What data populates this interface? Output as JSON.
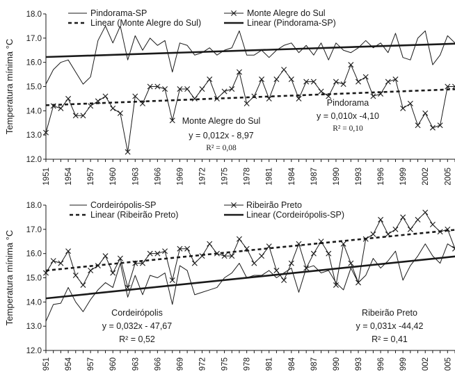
{
  "chart_data": [
    {
      "type": "line",
      "ylabel": "Temperatura mínima °C",
      "ylim": [
        12.0,
        18.0
      ],
      "yticks": [
        "12.0",
        "13.0",
        "14.0",
        "15.0",
        "16.0",
        "17.0",
        "18.0"
      ],
      "xlim": [
        1951,
        2006
      ],
      "xticks": [
        "1951",
        "1954",
        "1957",
        "1960",
        "1963",
        "1966",
        "1969",
        "1972",
        "1975",
        "1978",
        "1981",
        "1984",
        "1987",
        "1990",
        "1993",
        "1996",
        "1999",
        "2002",
        "2005"
      ],
      "legend": [
        "Pindorama-SP",
        "Monte Alegre do Sul",
        "Linear (Monte Alegre do Sul)",
        "Linear (Pindorama-SP)"
      ],
      "series": [
        {
          "name": "Pindorama-SP",
          "style": "thin-line",
          "color": "#1a1a1a",
          "x": [
            1951,
            1952,
            1953,
            1954,
            1955,
            1956,
            1957,
            1958,
            1959,
            1960,
            1961,
            1962,
            1963,
            1964,
            1965,
            1966,
            1967,
            1968,
            1969,
            1970,
            1971,
            1972,
            1973,
            1974,
            1975,
            1976,
            1977,
            1978,
            1979,
            1980,
            1981,
            1982,
            1983,
            1984,
            1985,
            1986,
            1987,
            1988,
            1989,
            1990,
            1991,
            1992,
            1993,
            1994,
            1995,
            1996,
            1997,
            1998,
            1999,
            2000,
            2001,
            2002,
            2003,
            2004,
            2005,
            2006
          ],
          "values": [
            15.1,
            15.7,
            16.0,
            16.1,
            15.6,
            15.1,
            15.4,
            16.9,
            17.5,
            16.8,
            17.5,
            16.1,
            17.1,
            16.5,
            17.0,
            16.7,
            16.9,
            15.6,
            16.8,
            16.7,
            16.3,
            16.4,
            16.6,
            16.3,
            16.5,
            16.6,
            17.3,
            16.3,
            16.3,
            16.5,
            16.2,
            16.5,
            16.7,
            16.8,
            16.4,
            16.7,
            16.3,
            16.8,
            16.1,
            16.8,
            16.5,
            16.4,
            16.6,
            16.9,
            16.6,
            16.8,
            16.4,
            17.2,
            16.2,
            16.1,
            17.0,
            17.3,
            15.9,
            16.3,
            17.1,
            16.8
          ]
        },
        {
          "name": "Monte Alegre do Sul",
          "style": "line-x-markers",
          "color": "#1a1a1a",
          "x": [
            1951,
            1952,
            1953,
            1954,
            1955,
            1956,
            1957,
            1958,
            1959,
            1960,
            1961,
            1962,
            1963,
            1964,
            1965,
            1966,
            1967,
            1968,
            1969,
            1970,
            1971,
            1972,
            1973,
            1974,
            1975,
            1976,
            1977,
            1978,
            1979,
            1980,
            1981,
            1982,
            1983,
            1984,
            1985,
            1986,
            1987,
            1988,
            1989,
            1990,
            1991,
            1992,
            1993,
            1994,
            1995,
            1996,
            1997,
            1998,
            1999,
            2000,
            2001,
            2002,
            2003,
            2004,
            2005,
            2006
          ],
          "values": [
            13.1,
            14.2,
            14.1,
            14.5,
            13.8,
            13.8,
            14.2,
            14.4,
            14.6,
            14.1,
            13.9,
            12.3,
            14.6,
            14.3,
            15.0,
            15.0,
            14.9,
            13.6,
            14.9,
            14.9,
            14.5,
            14.9,
            15.3,
            14.5,
            14.8,
            14.9,
            15.6,
            14.3,
            14.6,
            15.3,
            14.5,
            15.3,
            15.7,
            15.3,
            14.5,
            15.2,
            15.2,
            14.8,
            14.6,
            15.2,
            15.1,
            15.9,
            15.2,
            15.4,
            14.6,
            14.7,
            15.2,
            15.3,
            14.1,
            14.3,
            13.4,
            13.9,
            13.3,
            13.4,
            15.0,
            15.0
          ]
        },
        {
          "name": "Linear (Monte Alegre do Sul)",
          "style": "dashed-trend",
          "color": "#1a1a1a",
          "x": [
            1951,
            2006
          ],
          "values": [
            14.23,
            14.89
          ]
        },
        {
          "name": "Linear (Pindorama-SP)",
          "style": "bold-trend",
          "color": "#1a1a1a",
          "x": [
            1951,
            2006
          ],
          "values": [
            16.22,
            16.77
          ]
        }
      ],
      "annotations": [
        {
          "lines": [
            "Monte Alegre do Sul",
            "y = 0,012x - 8,97",
            "R² = 0,08"
          ]
        },
        {
          "lines": [
            "Pindorama",
            "y = 0,010x -4,10",
            "R² = 0,10"
          ]
        }
      ]
    },
    {
      "type": "line",
      "ylabel": "Temperatura mínima °C",
      "ylim": [
        12.0,
        18.0
      ],
      "yticks": [
        "12.0",
        "13.0",
        "14.0",
        "15.0",
        "16.0",
        "17.0",
        "18.0"
      ],
      "xlim": [
        1951,
        2006
      ],
      "xticks": [
        "951",
        "954",
        "957",
        "960",
        "963",
        "966",
        "969",
        "972",
        "975",
        "978",
        "981",
        "984",
        "987",
        "990",
        "993",
        "996",
        "999",
        "002",
        "005"
      ],
      "legend": [
        "Cordeirópolis-SP",
        "Ribeirão Preto",
        "Linear (Ribeirão Preto)",
        "Linear (Cordeirópolis-SP)"
      ],
      "series": [
        {
          "name": "Cordeirópolis-SP",
          "style": "thin-line",
          "color": "#1a1a1a",
          "x": [
            1951,
            1952,
            1953,
            1954,
            1955,
            1956,
            1957,
            1958,
            1959,
            1960,
            1961,
            1962,
            1963,
            1964,
            1965,
            1966,
            1967,
            1968,
            1969,
            1970,
            1971,
            1972,
            1973,
            1974,
            1975,
            1976,
            1977,
            1978,
            1979,
            1980,
            1981,
            1982,
            1983,
            1984,
            1985,
            1986,
            1987,
            1988,
            1989,
            1990,
            1991,
            1992,
            1993,
            1994,
            1995,
            1996,
            1997,
            1998,
            1999,
            2000,
            2001,
            2002,
            2003,
            2004,
            2005,
            2006
          ],
          "values": [
            13.2,
            13.9,
            13.95,
            14.6,
            14.0,
            13.6,
            14.1,
            14.5,
            14.8,
            14.6,
            15.6,
            14.2,
            15.1,
            14.3,
            15.1,
            15.0,
            15.2,
            13.9,
            15.5,
            15.3,
            14.3,
            14.4,
            14.5,
            14.6,
            15.0,
            15.2,
            15.6,
            15.0,
            15.1,
            15.1,
            15.3,
            15.0,
            15.2,
            15.4,
            14.4,
            15.4,
            15.5,
            15.2,
            15.3,
            14.8,
            14.5,
            15.4,
            14.8,
            15.1,
            15.8,
            15.4,
            15.7,
            16.1,
            14.9,
            15.5,
            15.9,
            16.4,
            15.9,
            15.6,
            16.4,
            16.2
          ]
        },
        {
          "name": "Ribeirão Preto",
          "style": "line-x-markers",
          "color": "#1a1a1a",
          "x": [
            1951,
            1952,
            1953,
            1954,
            1955,
            1956,
            1957,
            1958,
            1959,
            1960,
            1961,
            1962,
            1963,
            1964,
            1965,
            1966,
            1967,
            1968,
            1969,
            1970,
            1971,
            1972,
            1973,
            1974,
            1975,
            1976,
            1977,
            1978,
            1979,
            1980,
            1981,
            1982,
            1983,
            1984,
            1985,
            1986,
            1987,
            1988,
            1989,
            1990,
            1991,
            1992,
            1993,
            1994,
            1995,
            1996,
            1997,
            1998,
            1999,
            2000,
            2001,
            2002,
            2003,
            2004,
            2005,
            2006
          ],
          "values": [
            15.2,
            15.7,
            15.6,
            16.1,
            15.1,
            14.7,
            15.3,
            15.5,
            15.9,
            15.2,
            15.8,
            14.6,
            15.6,
            15.6,
            16.0,
            16.0,
            16.1,
            14.9,
            16.2,
            16.2,
            15.6,
            15.9,
            16.4,
            16.0,
            15.9,
            15.9,
            16.6,
            16.2,
            15.6,
            15.9,
            16.3,
            15.3,
            14.9,
            15.6,
            16.4,
            15.4,
            16.0,
            16.5,
            16.0,
            14.7,
            16.4,
            15.6,
            14.8,
            16.6,
            16.8,
            17.4,
            16.8,
            17.0,
            17.5,
            17.0,
            17.4,
            17.7,
            17.2,
            16.9,
            17.0,
            16.2
          ]
        },
        {
          "name": "Linear (Ribeirão Preto)",
          "style": "dashed-trend",
          "color": "#1a1a1a",
          "x": [
            1951,
            2006
          ],
          "values": [
            15.3,
            16.98
          ]
        },
        {
          "name": "Linear (Cordeirópolis-SP)",
          "style": "bold-trend",
          "color": "#1a1a1a",
          "x": [
            1951,
            2006
          ],
          "values": [
            14.15,
            15.88
          ]
        }
      ],
      "annotations": [
        {
          "lines": [
            "Cordeirópolis",
            "y = 0,032x - 47,67",
            "R² = 0,52"
          ]
        },
        {
          "lines": [
            "Ribeirão Preto",
            "y = 0,031x -44,42",
            "R² = 0,41"
          ]
        }
      ]
    }
  ]
}
